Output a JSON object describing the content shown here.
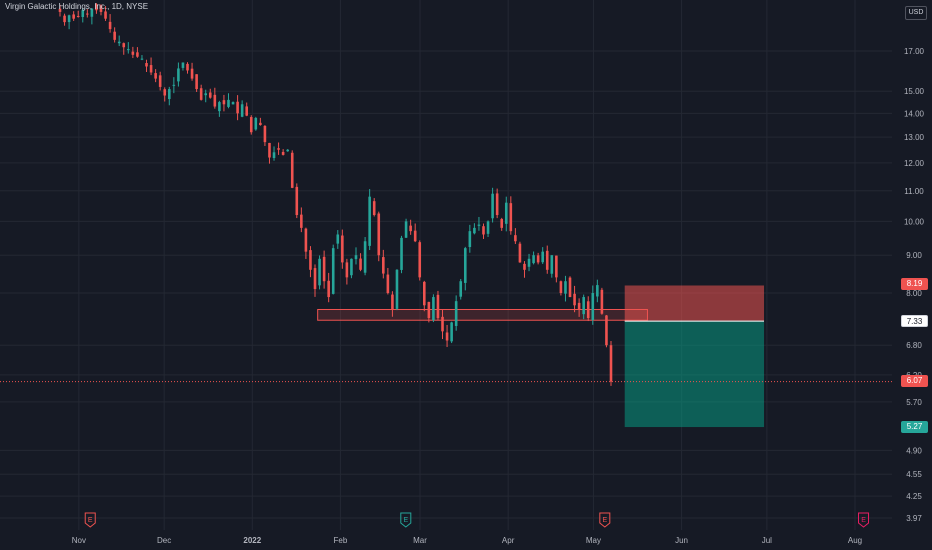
{
  "header": {
    "title": "Virgin Galactic Holdings, Inc., 1D, NYSE",
    "currency_button": "USD"
  },
  "price_tags": {
    "stop": "8.19",
    "entry": "7.33",
    "last": "6.07",
    "target": "5.27"
  },
  "chart_data": {
    "type": "candlestick",
    "title": "Virgin Galactic Holdings, Inc., 1D, NYSE",
    "currency": "USD",
    "y_scale": "log",
    "y_ticks": [
      17.0,
      15.0,
      14.0,
      13.0,
      12.0,
      11.0,
      10.0,
      9.0,
      8.0,
      6.8,
      6.2,
      5.7,
      4.9,
      4.55,
      4.25,
      3.97
    ],
    "x_ticks": [
      "Nov",
      "Dec",
      "2022",
      "Feb",
      "Mar",
      "Apr",
      "May",
      "Jun",
      "Jul",
      "Aug"
    ],
    "colors": {
      "up": "#26a69a",
      "down": "#ef5350",
      "background": "#161a25",
      "grid": "#242833"
    },
    "candles_close": [
      19.2,
      18.6,
      19.0,
      18.8,
      18.9,
      19.3,
      19.1,
      19.4,
      19.3,
      19.2,
      18.8,
      18.2,
      17.6,
      17.5,
      17.2,
      17.1,
      16.8,
      16.7,
      16.6,
      16.2,
      15.9,
      15.6,
      15.2,
      14.8,
      15.1,
      15.3,
      16.1,
      16.4,
      16.0,
      15.6,
      15.1,
      14.6,
      14.9,
      14.7,
      14.3,
      14.5,
      14.4,
      14.6,
      14.5,
      14.0,
      14.4,
      13.9,
      13.2,
      13.8,
      13.5,
      12.8,
      12.2,
      12.4,
      12.5,
      12.3,
      12.5,
      11.1,
      10.2,
      9.8,
      9.1,
      8.6,
      8.1,
      8.9,
      8.3,
      7.9,
      9.2,
      9.6,
      8.8,
      8.4,
      8.9,
      9.0,
      8.6,
      9.4,
      10.8,
      10.2,
      9.0,
      8.5,
      8.0,
      7.6,
      8.6,
      9.5,
      10.0,
      9.7,
      9.4,
      8.4,
      7.7,
      7.4,
      7.9,
      7.4,
      7.1,
      6.9,
      7.3,
      7.8,
      8.3,
      9.2,
      9.7,
      9.8,
      9.9,
      9.6,
      10.0,
      10.9,
      10.2,
      9.8,
      10.6,
      9.7,
      9.4,
      8.8,
      8.6,
      8.9,
      9.0,
      8.8,
      9.1,
      8.6,
      9.0,
      8.4,
      8.0,
      8.3,
      7.9,
      7.7,
      7.6,
      7.9,
      7.4,
      8.0,
      8.2,
      7.5,
      6.8,
      6.07
    ],
    "x_range": [
      "2021-10-12",
      "2022-08-15"
    ],
    "annotations": [
      {
        "type": "support_zone",
        "low": 7.35,
        "high": 7.6,
        "from": "2022-01-24",
        "to": "2022-05-20"
      },
      {
        "type": "risk_reward_short",
        "entry": 7.33,
        "stop": 8.19,
        "target": 5.27,
        "from": "2022-05-12",
        "to": "2022-06-30"
      },
      {
        "type": "last_price_line",
        "value": 6.07
      },
      {
        "type": "earnings_markers",
        "dates": [
          "2021-11-05",
          "2022-02-24",
          "2022-05-05",
          "2022-08-04"
        ]
      }
    ],
    "grid": true
  }
}
